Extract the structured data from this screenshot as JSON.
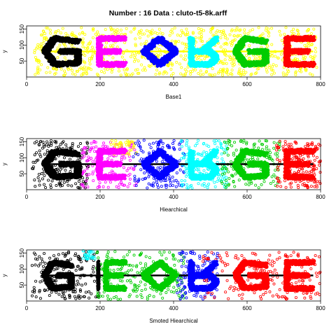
{
  "figure": {
    "title": "Number : 16    Data : cluto-t5-8k.arff"
  },
  "chart_data": [
    {
      "type": "scatter",
      "xlabel": "Base1",
      "ylabel": "y",
      "xlim": [
        0,
        800
      ],
      "ylim": [
        0,
        160
      ],
      "xticks": [
        0,
        200,
        400,
        600,
        800
      ],
      "yticks": [
        50,
        100,
        150
      ],
      "noise_color": "#ffff00",
      "band_y": 80,
      "band_range": [
        40,
        780
      ],
      "letters": [
        {
          "glyph": "G",
          "flip": false,
          "x_range": [
            45,
            150
          ],
          "color": "#000000",
          "marker": "filled"
        },
        {
          "glyph": "E",
          "flip": false,
          "x_range": [
            190,
            275
          ],
          "color": "#ff00ff",
          "marker": "filled"
        },
        {
          "glyph": "O",
          "flip": false,
          "x_range": [
            315,
            410
          ],
          "color": "#0000ff",
          "marker": "filled"
        },
        {
          "glyph": "R",
          "flip": true,
          "x_range": [
            440,
            525
          ],
          "color": "#00ffff",
          "marker": "filled"
        },
        {
          "glyph": "G",
          "flip": false,
          "x_range": [
            565,
            660
          ],
          "color": "#00cc00",
          "marker": "filled"
        },
        {
          "glyph": "E",
          "flip": false,
          "x_range": [
            700,
            790
          ],
          "color": "#ff0000",
          "marker": "filled"
        }
      ],
      "noise_clusters": [
        {
          "color": "#ffff00",
          "x_range": [
            20,
            790
          ],
          "y_range": [
            5,
            155
          ],
          "weight": 1
        }
      ]
    },
    {
      "type": "scatter",
      "xlabel": "Hiearchical",
      "ylabel": "y",
      "xlim": [
        0,
        800
      ],
      "ylim": [
        0,
        160
      ],
      "xticks": [
        0,
        200,
        400,
        600,
        800
      ],
      "yticks": [
        50,
        100,
        150
      ],
      "band_y": 80,
      "band_range": [
        40,
        780
      ],
      "letters": [
        {
          "glyph": "G",
          "flip": false,
          "x_range": [
            45,
            150
          ],
          "color": "#000000",
          "marker": "filled"
        },
        {
          "glyph": "E",
          "flip": false,
          "x_range": [
            190,
            275
          ],
          "color": "#ff00ff",
          "marker": "filled"
        },
        {
          "glyph": "O",
          "flip": false,
          "x_range": [
            315,
            410
          ],
          "color": "#0000ff",
          "marker": "filled"
        },
        {
          "glyph": "R",
          "flip": true,
          "x_range": [
            440,
            525
          ],
          "color": "#00ffff",
          "marker": "filled"
        },
        {
          "glyph": "G",
          "flip": false,
          "x_range": [
            565,
            660
          ],
          "color": "#00cc00",
          "marker": "filled"
        },
        {
          "glyph": "E",
          "flip": false,
          "x_range": [
            700,
            790
          ],
          "color": "#ff0000",
          "marker": "filled"
        }
      ],
      "noise_clusters": [
        {
          "color": "#000000",
          "x_range": [
            15,
            170
          ],
          "y_range": [
            5,
            155
          ],
          "weight": 1
        },
        {
          "color": "#ff00ff",
          "x_range": [
            150,
            300
          ],
          "y_range": [
            5,
            155
          ],
          "weight": 0.9
        },
        {
          "color": "#ffff00",
          "x_range": [
            230,
            300
          ],
          "y_range": [
            110,
            155
          ],
          "weight": 0.3
        },
        {
          "color": "#0000ff",
          "x_range": [
            290,
            430
          ],
          "y_range": [
            5,
            155
          ],
          "weight": 0.9
        },
        {
          "color": "#00ffff",
          "x_range": [
            420,
            545
          ],
          "y_range": [
            5,
            155
          ],
          "weight": 0.9
        },
        {
          "color": "#00cc00",
          "x_range": [
            530,
            690
          ],
          "y_range": [
            5,
            155
          ],
          "weight": 0.9
        },
        {
          "color": "#ff0000",
          "x_range": [
            680,
            800
          ],
          "y_range": [
            5,
            155
          ],
          "weight": 1
        }
      ]
    },
    {
      "type": "scatter",
      "xlabel": "Smoted Hiearchical",
      "ylabel": "y",
      "xlim": [
        0,
        800
      ],
      "ylim": [
        0,
        160
      ],
      "xticks": [
        0,
        200,
        400,
        600,
        800
      ],
      "yticks": [
        50,
        100,
        150
      ],
      "band_y": 80,
      "band_range": [
        40,
        780
      ],
      "letters": [
        {
          "glyph": "G",
          "flip": false,
          "x_range": [
            45,
            130
          ],
          "color": "#000000",
          "marker": "filled"
        },
        {
          "glyph": "I",
          "flip": false,
          "x_range": [
            185,
            205
          ],
          "color": "#000000",
          "marker": "filled"
        },
        {
          "glyph": "E",
          "flip": false,
          "x_range": [
            210,
            275
          ],
          "color": "#00cc00",
          "marker": "filled"
        },
        {
          "glyph": "O",
          "flip": false,
          "x_range": [
            315,
            410
          ],
          "color": "#00cc00",
          "marker": "filled"
        },
        {
          "glyph": "R",
          "flip": true,
          "x_range": [
            440,
            525
          ],
          "color": "#0000ff",
          "marker": "filled"
        },
        {
          "glyph": "G",
          "flip": false,
          "x_range": [
            565,
            660
          ],
          "color": "#ff0000",
          "marker": "filled"
        },
        {
          "glyph": "E",
          "flip": false,
          "x_range": [
            700,
            790
          ],
          "color": "#ff0000",
          "marker": "filled"
        }
      ],
      "noise_clusters": [
        {
          "color": "#000000",
          "x_range": [
            15,
            200
          ],
          "y_range": [
            5,
            155
          ],
          "weight": 1
        },
        {
          "color": "#00ffff",
          "x_range": [
            150,
            190
          ],
          "y_range": [
            130,
            158
          ],
          "weight": 0.15
        },
        {
          "color": "#00cc00",
          "x_range": [
            190,
            430
          ],
          "y_range": [
            5,
            155
          ],
          "weight": 1.1
        },
        {
          "color": "#0000ff",
          "x_range": [
            410,
            520
          ],
          "y_range": [
            5,
            155
          ],
          "weight": 0.7
        },
        {
          "color": "#ff0000",
          "x_range": [
            480,
            800
          ],
          "y_range": [
            5,
            155
          ],
          "weight": 1.1
        }
      ]
    }
  ]
}
